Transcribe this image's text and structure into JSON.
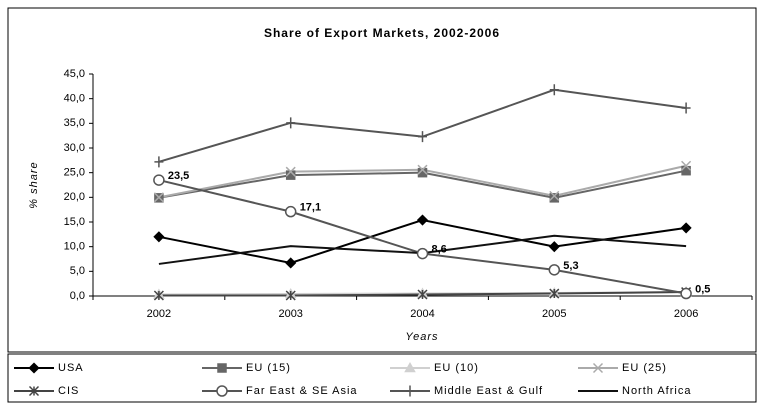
{
  "chart_data": {
    "type": "line",
    "title": "Share of Export Markets, 2002-2006",
    "x_label": "Years",
    "y_label": "% share",
    "categories": [
      "2002",
      "2003",
      "2004",
      "2005",
      "2006"
    ],
    "ylim": [
      0,
      45
    ],
    "yticks": [
      {
        "value": 0,
        "label": "0,0"
      },
      {
        "value": 5,
        "label": "5,0"
      },
      {
        "value": 10,
        "label": "10,0"
      },
      {
        "value": 15,
        "label": "15,0"
      },
      {
        "value": 20,
        "label": "20,0"
      },
      {
        "value": 25,
        "label": "25,0"
      },
      {
        "value": 30,
        "label": "30,0"
      },
      {
        "value": 35,
        "label": "35,0"
      },
      {
        "value": 40,
        "label": "40,0"
      },
      {
        "value": 45,
        "label": "45,0"
      }
    ],
    "grid": false,
    "series": [
      {
        "name": "USA",
        "color": "#000000",
        "marker": "diamond",
        "values": [
          12,
          6.7,
          15.4,
          10,
          13.8
        ]
      },
      {
        "name": "EU (15)",
        "color": "#666666",
        "marker": "square",
        "values": [
          19.9,
          24.5,
          25,
          19.9,
          25.4
        ]
      },
      {
        "name": "EU (10)",
        "color": "#d0d0d0",
        "marker": "triangle",
        "values": [
          0.3,
          0.4,
          0.5,
          0.6,
          0.8
        ]
      },
      {
        "name": "EU (25)",
        "color": "#aaaaaa",
        "marker": "x",
        "values": [
          20,
          25.2,
          25.6,
          20.3,
          26.4
        ]
      },
      {
        "name": "CIS",
        "color": "#444444",
        "marker": "star",
        "values": [
          0.1,
          0.1,
          0.3,
          0.5,
          0.8
        ]
      },
      {
        "name": "Far East & SE Asia",
        "color": "#555555",
        "marker": "circle",
        "values": [
          23.5,
          17.1,
          8.6,
          5.3,
          0.5
        ],
        "value_labels": [
          "23,5",
          "17,1",
          "8,6",
          "5,3",
          "0,5"
        ]
      },
      {
        "name": "Middle East & Gulf",
        "color": "#555555",
        "marker": "plus",
        "values": [
          27.2,
          35.1,
          32.3,
          41.8,
          38.1
        ]
      },
      {
        "name": "North Africa",
        "color": "#111111",
        "marker": "none",
        "values": [
          6.5,
          10.1,
          8.7,
          12.2,
          10.1
        ]
      }
    ]
  }
}
